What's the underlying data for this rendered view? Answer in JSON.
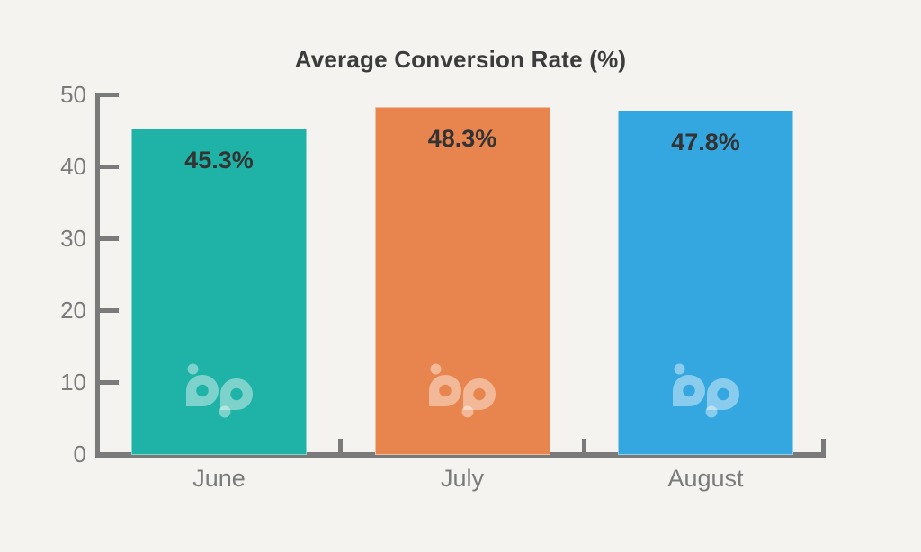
{
  "chart_data": {
    "type": "bar",
    "title": "Average Conversion Rate (%)",
    "categories": [
      "June",
      "July",
      "August"
    ],
    "values": [
      45.3,
      48.3,
      47.8
    ],
    "value_labels": [
      "45.3%",
      "48.3%",
      "47.8%"
    ],
    "series": [
      {
        "name": "Average Conversion Rate",
        "values": [
          45.3,
          48.3,
          47.8
        ]
      }
    ],
    "bar_colors": [
      "#1fb2a6",
      "#e8854f",
      "#35a7e0"
    ],
    "xlabel": "",
    "ylabel": "",
    "ylim": [
      0,
      50
    ],
    "yticks": [
      0,
      10,
      20,
      30,
      40,
      50
    ],
    "grid": false,
    "legend": "none",
    "colors": {
      "background": "#f4f3f0",
      "axis": "#7a7a7a",
      "tick_label": "#7b7b7b",
      "category_label": "#7b7b7b",
      "title": "#3c3c3c",
      "value_label": "#333333",
      "watermark": "#ffffff"
    },
    "watermark": {
      "icon": "bp-logo-watermark",
      "opacity": 0.42,
      "per_bar": true
    }
  }
}
